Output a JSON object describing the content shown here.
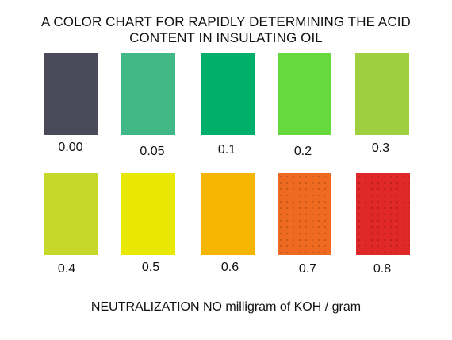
{
  "title": {
    "line1": "A COLOR CHART FOR RAPIDLY DETERMINING THE ACID",
    "line2": "CONTENT IN INSULATING OIL"
  },
  "swatches": [
    {
      "label": "0.00",
      "color": "#4a4a5a"
    },
    {
      "label": "0.05",
      "color": "#43b887"
    },
    {
      "label": "0.1",
      "color": "#00b06a"
    },
    {
      "label": "0.2",
      "color": "#66d93c"
    },
    {
      "label": "0.3",
      "color": "#9ecf3e"
    },
    {
      "label": "0.4",
      "color": "#c6d829"
    },
    {
      "label": "0.5",
      "color": "#e8e800"
    },
    {
      "label": "0.6",
      "color": "#f6b500"
    },
    {
      "label": "0.7",
      "color": "#ee6a20"
    },
    {
      "label": "0.8",
      "color": "#e02828"
    }
  ],
  "footer": "NEUTRALIZATION NO milligram of KOH / gram"
}
